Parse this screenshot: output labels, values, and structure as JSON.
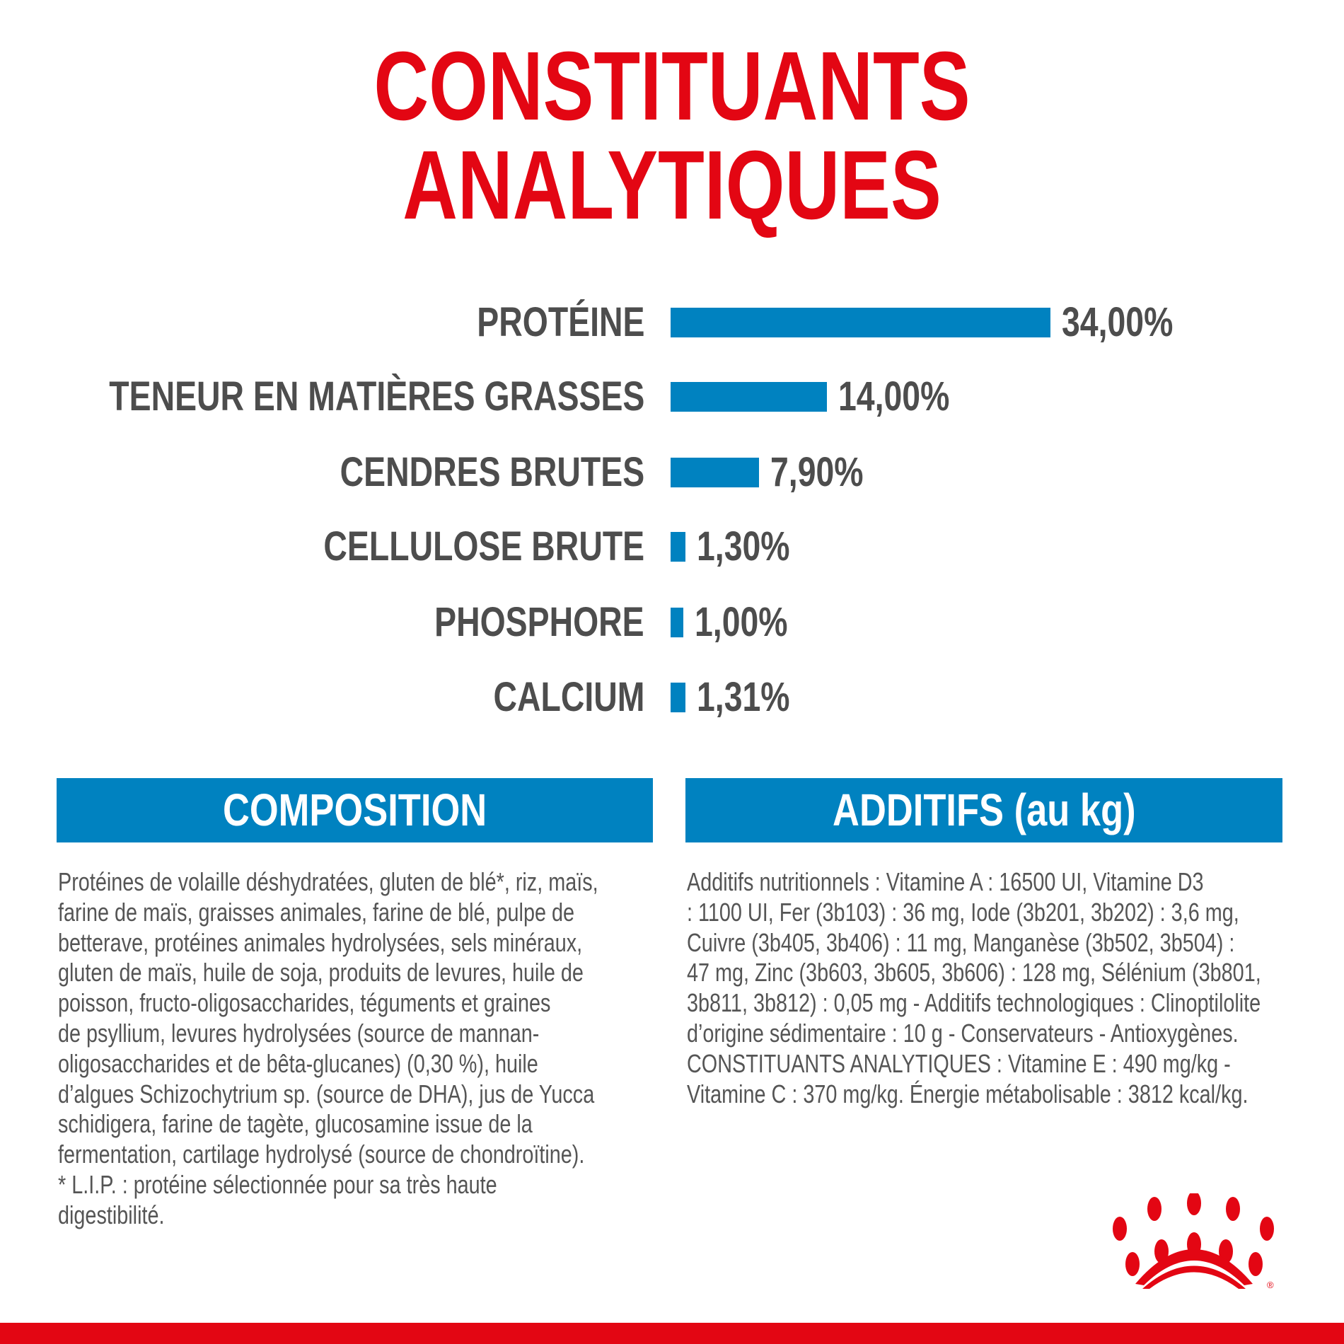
{
  "title": "CONSTITUANTS ANALYTIQUES",
  "colors": {
    "title": "#e30613",
    "bar": "#0082c0",
    "text": "#4d4d4d",
    "brand_red": "#e30613"
  },
  "chart_data": {
    "type": "bar",
    "orientation": "horizontal",
    "unit": "%",
    "categories": [
      "PROTÉINE",
      "TENEUR EN MATIÈRES GRASSES",
      "CENDRES BRUTES",
      "CELLULOSE BRUTE",
      "PHOSPHORE",
      "CALCIUM"
    ],
    "values": [
      34.0,
      14.0,
      7.9,
      1.3,
      1.0,
      1.31
    ],
    "labels": [
      "34,00%",
      "14,00%",
      "7,90%",
      "1,30%",
      "1,00%",
      "1,31%"
    ]
  },
  "composition": {
    "header": "COMPOSITION",
    "lines": [
      "Protéines de volaille déshydratées, gluten de blé*, riz, maïs,",
      "farine de maïs, graisses animales, farine de blé, pulpe de",
      "betterave, protéines animales hydrolysées, sels minéraux,",
      "gluten de maïs, huile de soja, produits de levures, huile de",
      "poisson, fructo-oligosaccharides, téguments et graines",
      "de psyllium, levures hydrolysées (source de mannan-",
      "oligosaccharides et de bêta-glucanes) (0,30 %), huile",
      "d’algues Schizochytrium sp. (source de DHA), jus de Yucca",
      "schidigera, farine de tagète, glucosamine issue de la",
      "fermentation, cartilage hydrolysé (source de chondroïtine).",
      "* L.I.P. : protéine sélectionnée pour sa très haute",
      "digestibilité."
    ]
  },
  "additifs": {
    "header": "ADDITIFS (au kg)",
    "lines": [
      "Additifs nutritionnels : Vitamine A : 16500 UI, Vitamine D3",
      ": 1100 UI, Fer (3b103) : 36 mg, Iode (3b201, 3b202) : 3,6 mg,",
      "Cuivre (3b405, 3b406) : 11 mg, Manganèse (3b502, 3b504) :",
      "47 mg, Zinc (3b603, 3b605, 3b606) : 128 mg, Sélénium (3b801,",
      "3b811, 3b812) : 0,05 mg - Additifs technologiques : Clinoptilolite",
      "d’origine sédimentaire : 10 g - Conservateurs - Antioxygènes.",
      "CONSTITUANTS ANALYTIQUES : Vitamine E : 490 mg/kg -",
      "Vitamine C : 370 mg/kg. Énergie métabolisable : 3812 kcal/kg."
    ]
  },
  "logo": {
    "icon": "royal-canin-crown-logo",
    "mark": "®"
  }
}
